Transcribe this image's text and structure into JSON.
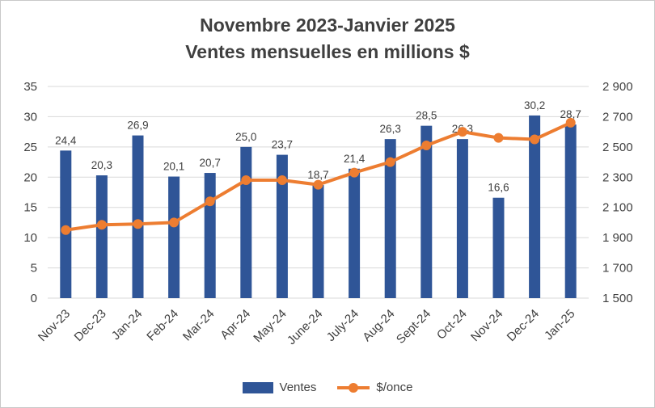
{
  "title_line1": "Novembre 2023-Janvier 2025",
  "title_line2": "Ventes mensuelles en millions $",
  "colors": {
    "bar": "#2f5597",
    "line": "#ed7d31",
    "line_marker": "#ed7d31",
    "text": "#404040",
    "grid": "#d9d9d9"
  },
  "legend": {
    "ventes_label": "Ventes",
    "once_label": "$/once"
  },
  "chart_data": {
    "type": "combo",
    "categories": [
      "Nov-23",
      "Dec-23",
      "Jan-24",
      "Feb-24",
      "Mar-24",
      "Apr-24",
      "May-24",
      "June-24",
      "July-24",
      "Aug-24",
      "Sept-24",
      "Oct-24",
      "Nov-24",
      "Dec-24",
      "Jan-25"
    ],
    "series": [
      {
        "name": "Ventes",
        "type": "bar",
        "axis": "left",
        "values": [
          24.4,
          20.3,
          26.9,
          20.1,
          20.7,
          25.0,
          23.7,
          18.7,
          21.4,
          26.3,
          28.5,
          26.3,
          16.6,
          30.2,
          28.7
        ],
        "labels": [
          "24,4",
          "20,3",
          "26,9",
          "20,1",
          "20,7",
          "25,0",
          "23,7",
          "18,7",
          "21,4",
          "26,3",
          "28,5",
          "26,3",
          "16,6",
          "30,2",
          "28,7"
        ]
      },
      {
        "name": "$/once",
        "type": "line",
        "axis": "right",
        "values": [
          1950,
          1985,
          1990,
          2000,
          2140,
          2280,
          2280,
          2250,
          2330,
          2400,
          2510,
          2600,
          2560,
          2550,
          2660
        ]
      }
    ],
    "left_axis": {
      "min": 0,
      "max": 35,
      "step": 5,
      "ticks": [
        "0",
        "5",
        "10",
        "15",
        "20",
        "25",
        "30",
        "35"
      ]
    },
    "right_axis": {
      "min": 1500,
      "max": 2900,
      "step": 200,
      "ticks": [
        "1 500",
        "1 700",
        "1 900",
        "2 100",
        "2 300",
        "2 500",
        "2 700",
        "2 900"
      ]
    },
    "grid": true,
    "legend_position": "bottom"
  }
}
